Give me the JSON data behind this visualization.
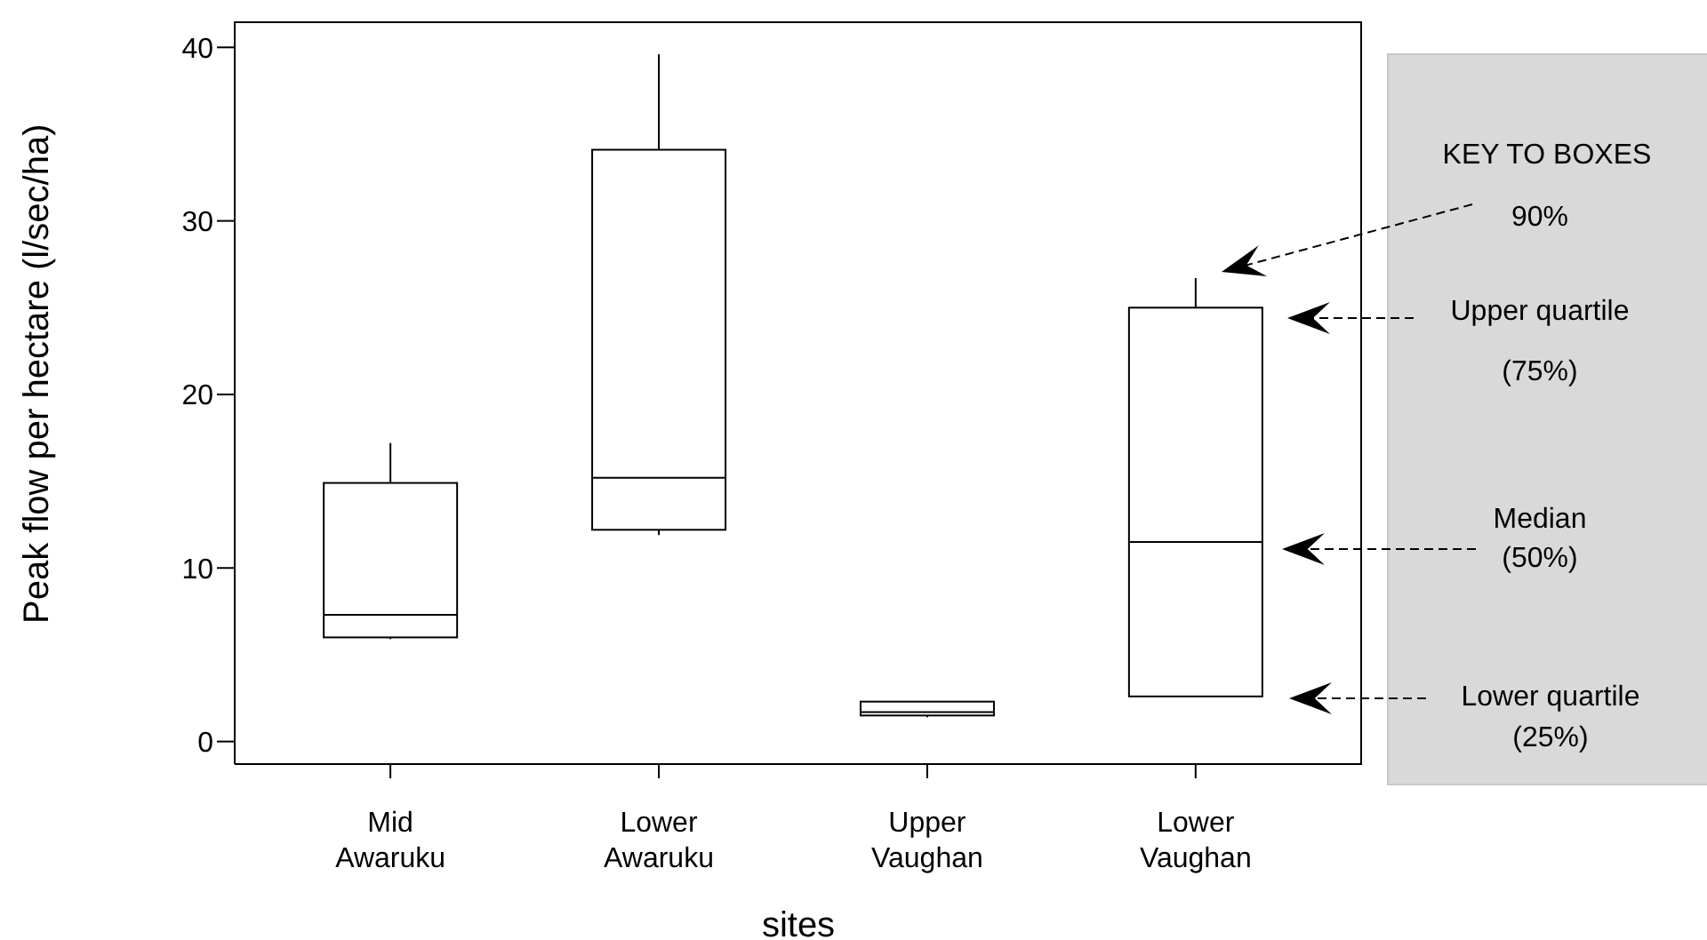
{
  "chart_data": {
    "type": "box",
    "ylabel": "Peak flow per hectare (l/sec/ha)",
    "xlabel": "sites",
    "categories": [
      "Mid Awaruku",
      "Lower Awaruku",
      "Upper Vaughan",
      "Lower Vaughan"
    ],
    "boxes": [
      {
        "low": 5.9,
        "q1": 6.0,
        "median": 7.3,
        "q3": 14.9,
        "high": 17.2
      },
      {
        "low": 11.9,
        "q1": 12.2,
        "median": 15.2,
        "q3": 34.1,
        "high": 39.6
      },
      {
        "low": 1.4,
        "q1": 1.5,
        "median": 1.7,
        "q3": 2.3,
        "high": 2.3
      },
      {
        "low": 2.6,
        "q1": 2.6,
        "median": 11.5,
        "q3": 25.0,
        "high": 26.7
      }
    ],
    "ylim": [
      -1.3,
      41.5
    ],
    "yticks": [
      0,
      10,
      20,
      30,
      40
    ],
    "grid": false,
    "legend": false,
    "annotations": [
      "KEY TO BOXES",
      "90%",
      "Upper quartile",
      "(75%)",
      "Median",
      "(50%)",
      "Lower quartile",
      "(25%)"
    ]
  }
}
